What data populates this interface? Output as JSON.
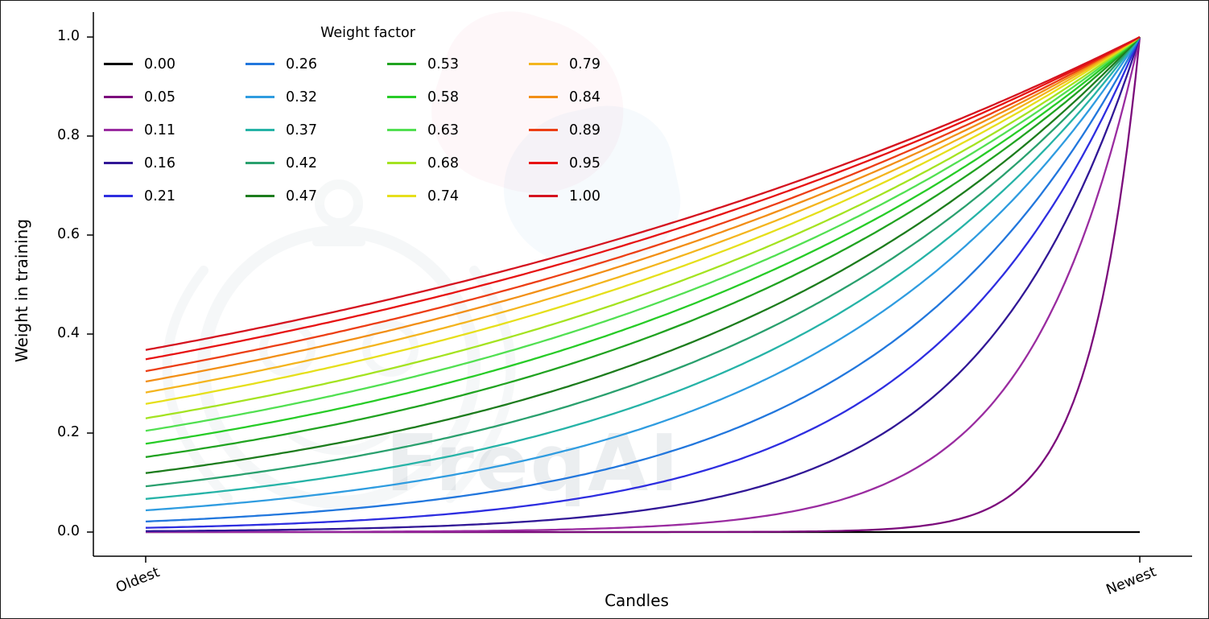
{
  "figure": {
    "watermark": "FreqAI"
  },
  "chart_data": {
    "type": "line",
    "title": "",
    "xlabel": "Candles",
    "ylabel": "Weight in training",
    "x_tick_labels": [
      "Oldest",
      "Newest"
    ],
    "y_ticks": [
      0.0,
      0.2,
      0.4,
      0.6,
      0.8,
      1.0
    ],
    "ylim": [
      -0.05,
      1.05
    ],
    "x_data_range": [
      0,
      1
    ],
    "grid": false,
    "legend_title": "Weight factor",
    "legend_position": "upper left",
    "legend_columns": 4,
    "formula": "weight(t) = exp(-(1 - t) / weight_factor) for t in [0,1] going Oldest -> Newest; weight_factor 0.00 is the degenerate flat-zero line",
    "series": [
      {
        "label": "0.00",
        "weight_factor": 0.0,
        "color": "#000000",
        "y_at_oldest": 0.0,
        "y_at_newest": 0.0
      },
      {
        "label": "0.05",
        "weight_factor": 0.05,
        "color": "#7c0c7c",
        "y_at_oldest": 0.0,
        "y_at_newest": 1.0
      },
      {
        "label": "0.11",
        "weight_factor": 0.11,
        "color": "#9a2ca0",
        "y_at_oldest": 0.0,
        "y_at_newest": 1.0
      },
      {
        "label": "0.16",
        "weight_factor": 0.16,
        "color": "#311796",
        "y_at_oldest": 0.002,
        "y_at_newest": 1.0
      },
      {
        "label": "0.21",
        "weight_factor": 0.21,
        "color": "#2e2ee0",
        "y_at_oldest": 0.009,
        "y_at_newest": 1.0
      },
      {
        "label": "0.26",
        "weight_factor": 0.26,
        "color": "#2277dd",
        "y_at_oldest": 0.021,
        "y_at_newest": 1.0
      },
      {
        "label": "0.32",
        "weight_factor": 0.32,
        "color": "#2f9ce0",
        "y_at_oldest": 0.044,
        "y_at_newest": 1.0
      },
      {
        "label": "0.37",
        "weight_factor": 0.37,
        "color": "#26b3a7",
        "y_at_oldest": 0.067,
        "y_at_newest": 1.0
      },
      {
        "label": "0.42",
        "weight_factor": 0.42,
        "color": "#2aa06e",
        "y_at_oldest": 0.092,
        "y_at_newest": 1.0
      },
      {
        "label": "0.47",
        "weight_factor": 0.47,
        "color": "#1d7c1d",
        "y_at_oldest": 0.119,
        "y_at_newest": 1.0
      },
      {
        "label": "0.53",
        "weight_factor": 0.53,
        "color": "#21a321",
        "y_at_oldest": 0.152,
        "y_at_newest": 1.0
      },
      {
        "label": "0.58",
        "weight_factor": 0.58,
        "color": "#27cc27",
        "y_at_oldest": 0.178,
        "y_at_newest": 1.0
      },
      {
        "label": "0.63",
        "weight_factor": 0.63,
        "color": "#52e052",
        "y_at_oldest": 0.204,
        "y_at_newest": 1.0
      },
      {
        "label": "0.68",
        "weight_factor": 0.68,
        "color": "#a4e321",
        "y_at_oldest": 0.23,
        "y_at_newest": 1.0
      },
      {
        "label": "0.74",
        "weight_factor": 0.74,
        "color": "#e6df1b",
        "y_at_oldest": 0.259,
        "y_at_newest": 1.0
      },
      {
        "label": "0.79",
        "weight_factor": 0.79,
        "color": "#f4b51e",
        "y_at_oldest": 0.282,
        "y_at_newest": 1.0
      },
      {
        "label": "0.84",
        "weight_factor": 0.84,
        "color": "#f28f16",
        "y_at_oldest": 0.304,
        "y_at_newest": 1.0
      },
      {
        "label": "0.89",
        "weight_factor": 0.89,
        "color": "#ec3e14",
        "y_at_oldest": 0.325,
        "y_at_newest": 1.0
      },
      {
        "label": "0.95",
        "weight_factor": 0.95,
        "color": "#e71212",
        "y_at_oldest": 0.349,
        "y_at_newest": 1.0
      },
      {
        "label": "1.00",
        "weight_factor": 1.0,
        "color": "#d5131f",
        "y_at_oldest": 0.368,
        "y_at_newest": 1.0
      }
    ]
  }
}
